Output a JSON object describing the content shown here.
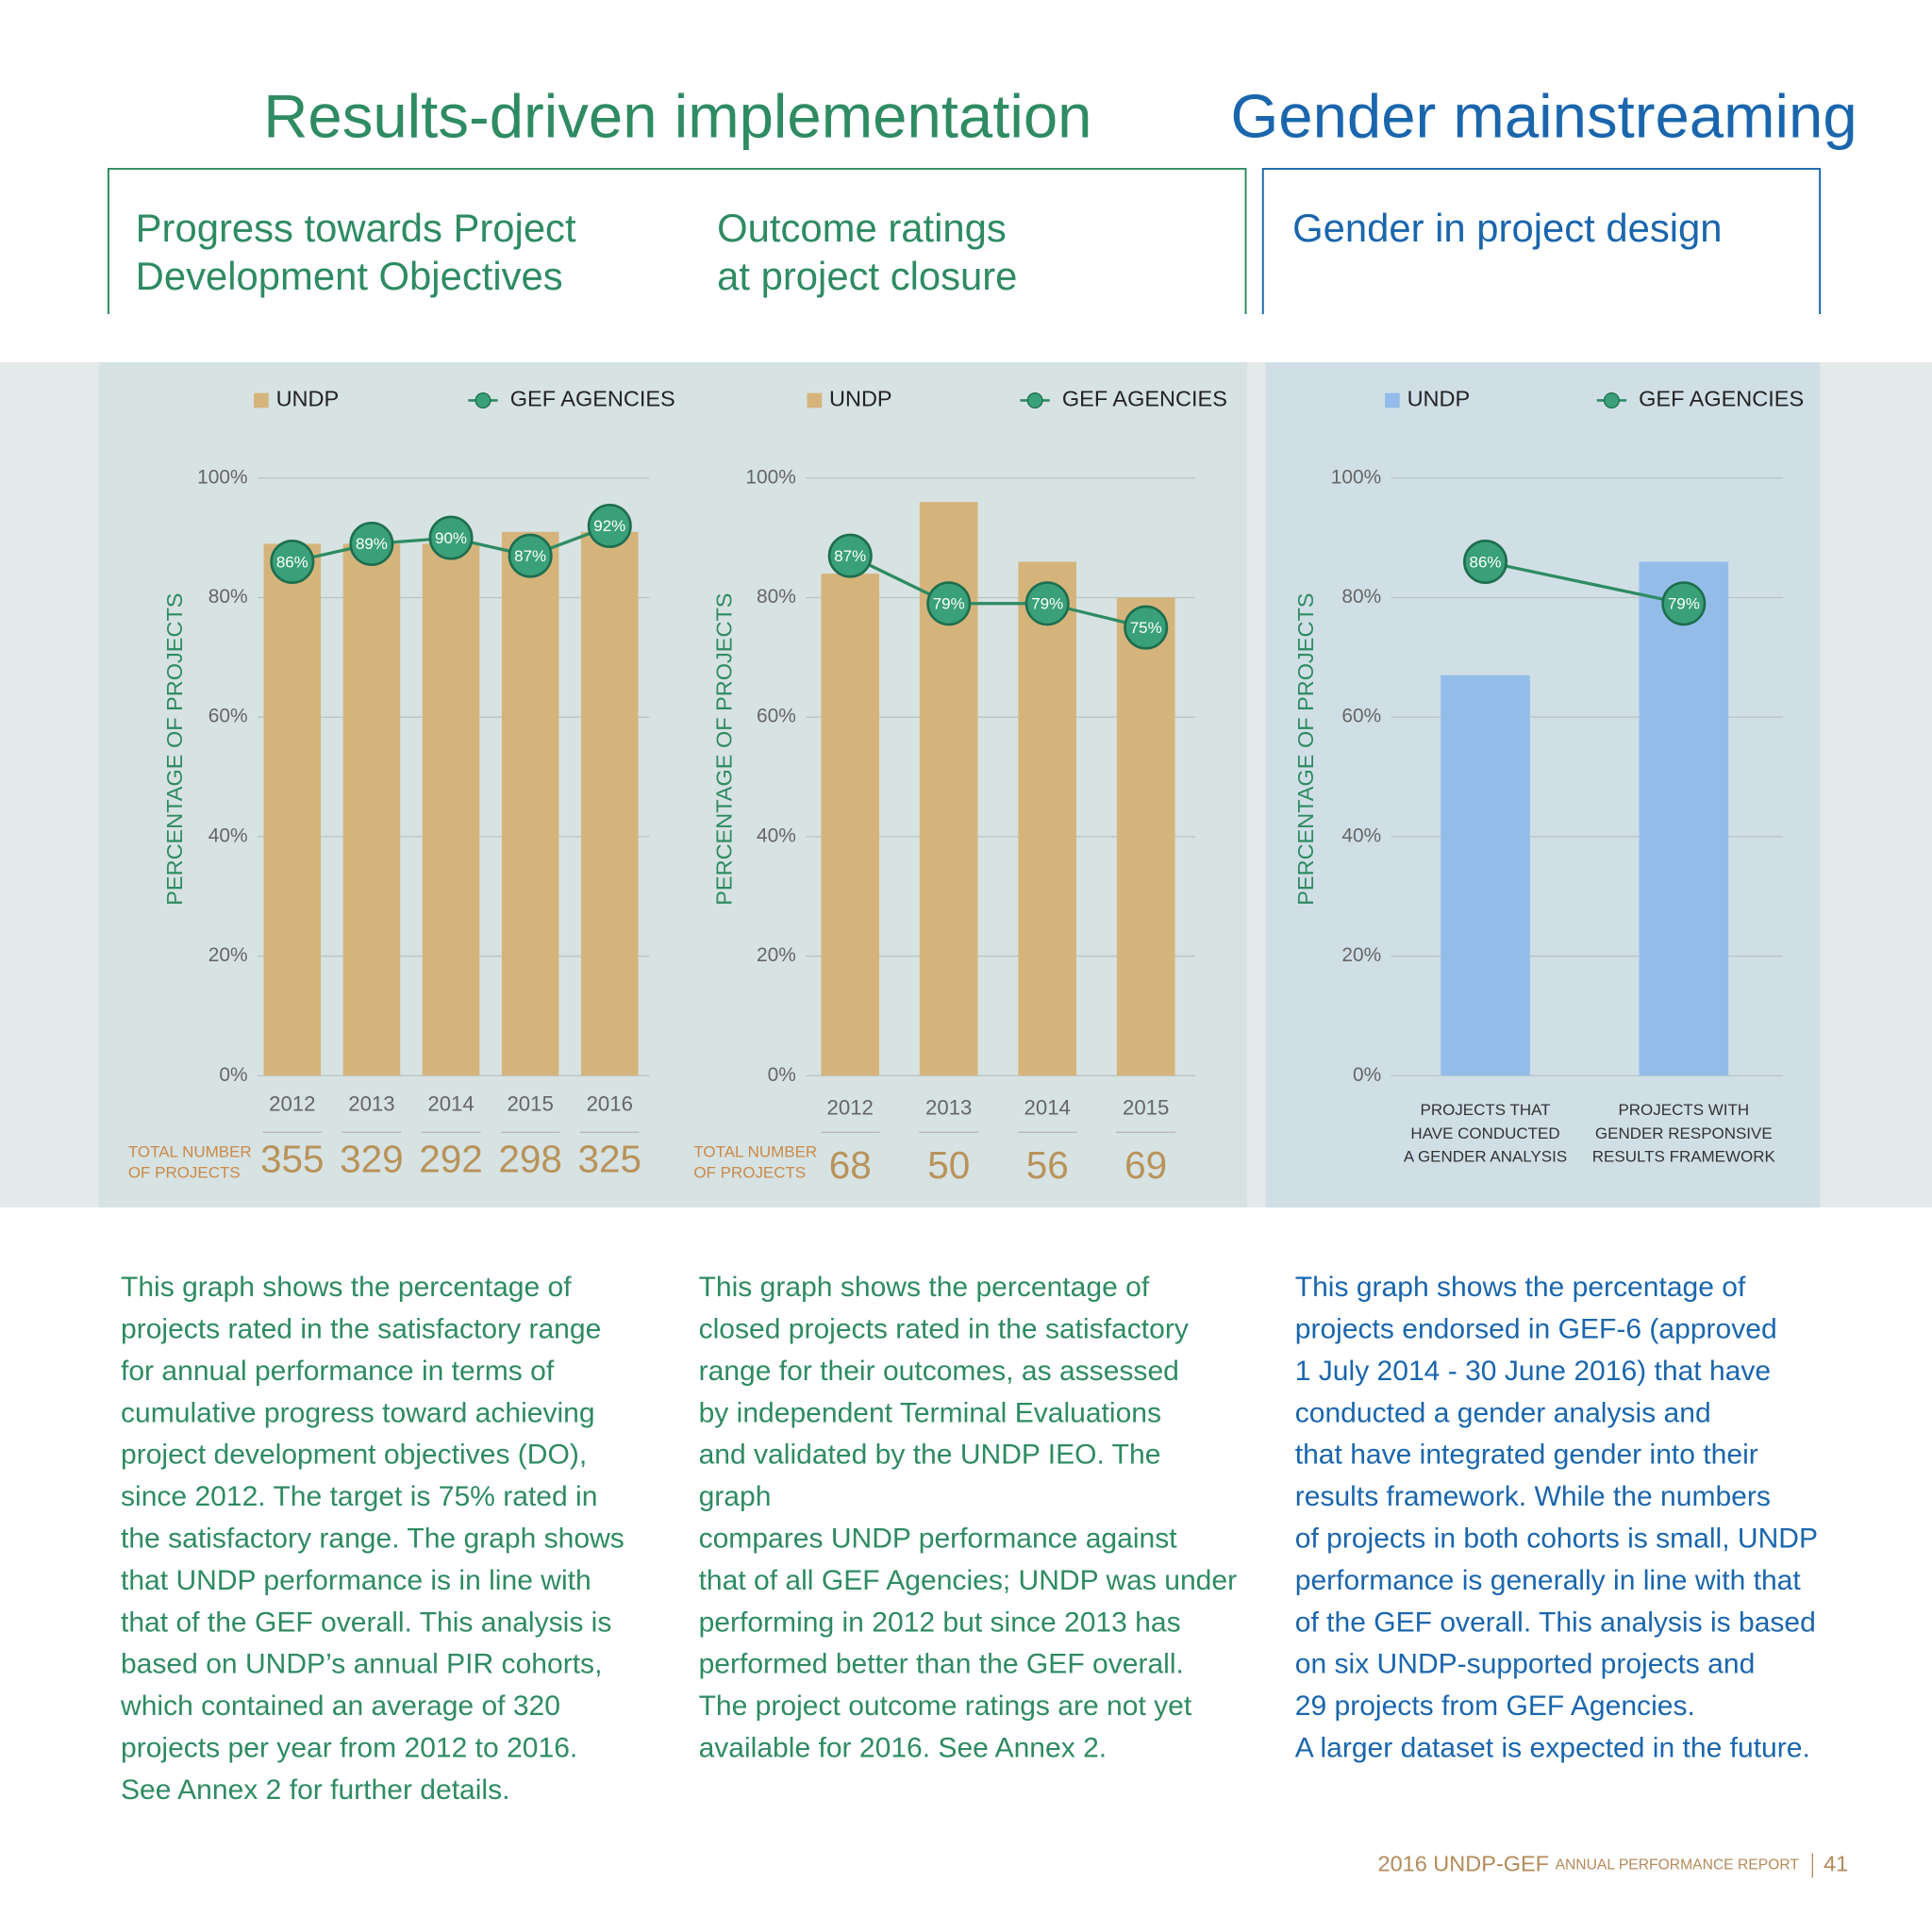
{
  "headers": {
    "results": "Results-driven implementation",
    "gender": "Gender mainstreaming"
  },
  "chart_data": [
    {
      "type": "bar",
      "title": "Progress towards Project\nDevelopment Objectives",
      "ylabel": "PERCENTAGE OF PROJECTS",
      "categories": [
        "2012",
        "2013",
        "2014",
        "2015",
        "2016"
      ],
      "series": [
        {
          "name": "UNDP",
          "color": "#d5b47c",
          "values": [
            89,
            89,
            89,
            91,
            91
          ]
        },
        {
          "name": "GEF AGENCIES",
          "type": "line",
          "color": "#2e8b62",
          "values": [
            86,
            89,
            90,
            87,
            92
          ],
          "value_labels": [
            "86%",
            "89%",
            "90%",
            "87%",
            "92%"
          ]
        }
      ],
      "ylim": [
        0,
        100
      ],
      "yticks": [
        {
          "value": 0,
          "label": "0%"
        },
        {
          "value": 20,
          "label": "20%"
        },
        {
          "value": 40,
          "label": "40%"
        },
        {
          "value": 60,
          "label": "60%"
        },
        {
          "value": 80,
          "label": "80%"
        },
        {
          "value": 100,
          "label": "100%"
        }
      ],
      "grid": true,
      "totals_label": "TOTAL NUMBER\nOF PROJECTS",
      "totals": [
        355,
        329,
        292,
        298,
        325
      ],
      "description": "This graph shows the percentage of\nprojects rated in the satisfactory range\nfor annual performance in terms of\ncumulative progress toward achieving\nproject development objectives (DO),\nsince 2012. The target is 75% rated in\nthe satisfactory range. The graph shows\nthat UNDP performance is in line with\nthat of the GEF overall. This analysis is\nbased on UNDP’s annual PIR cohorts,\nwhich contained an average of 320\nprojects per year from 2012 to 2016.\nSee Annex 2 for further details."
    },
    {
      "type": "bar",
      "title": "Outcome ratings\nat project closure",
      "ylabel": "PERCENTAGE OF PROJECTS",
      "categories": [
        "2012",
        "2013",
        "2014",
        "2015"
      ],
      "series": [
        {
          "name": "UNDP",
          "color": "#d5b47c",
          "values": [
            84,
            96,
            86,
            80
          ]
        },
        {
          "name": "GEF AGENCIES",
          "type": "line",
          "color": "#2e8b62",
          "values": [
            87,
            79,
            79,
            75
          ],
          "value_labels": [
            "87%",
            "79%",
            "79%",
            "75%"
          ]
        }
      ],
      "ylim": [
        0,
        100
      ],
      "yticks": [
        {
          "value": 0,
          "label": "0%"
        },
        {
          "value": 20,
          "label": "20%"
        },
        {
          "value": 40,
          "label": "40%"
        },
        {
          "value": 60,
          "label": "60%"
        },
        {
          "value": 80,
          "label": "80%"
        },
        {
          "value": 100,
          "label": "100%"
        }
      ],
      "grid": true,
      "totals_label": "TOTAL NUMBER\nOF PROJECTS",
      "totals": [
        68,
        50,
        56,
        69
      ],
      "description": "This graph shows the percentage of\nclosed projects rated in the satisfactory\nrange for their outcomes, as assessed\nby independent Terminal Evaluations\nand validated by the UNDP IEO. The graph\ncompares UNDP performance against\nthat of all GEF Agencies; UNDP was under\nperforming in 2012 but since 2013 has\nperformed better than the GEF overall.\nThe project outcome ratings are not yet\navailable for 2016. See Annex 2."
    },
    {
      "type": "bar",
      "title": "Gender in project design",
      "ylabel": "PERCENTAGE OF PROJECTS",
      "categories": [
        "PROJECTS THAT\nHAVE CONDUCTED\nA GENDER ANALYSIS",
        "PROJECTS WITH\nGENDER RESPONSIVE\nRESULTS FRAMEWORK"
      ],
      "series": [
        {
          "name": "UNDP",
          "color": "#93bde8",
          "values": [
            67,
            86
          ]
        },
        {
          "name": "GEF AGENCIES",
          "type": "line",
          "color": "#2e8b62",
          "values": [
            86,
            79
          ],
          "value_labels": [
            "86%",
            "79%"
          ]
        }
      ],
      "ylim": [
        0,
        100
      ],
      "yticks": [
        {
          "value": 0,
          "label": "0%"
        },
        {
          "value": 20,
          "label": "20%"
        },
        {
          "value": 40,
          "label": "40%"
        },
        {
          "value": 60,
          "label": "60%"
        },
        {
          "value": 80,
          "label": "80%"
        },
        {
          "value": 100,
          "label": "100%"
        }
      ],
      "grid": true,
      "description": "This graph shows the percentage of\nprojects endorsed in GEF-6 (approved\n1 July 2014 - 30 June 2016) that have\nconducted a gender analysis and\nthat have integrated gender into their\nresults framework. While the numbers\nof projects in both cohorts is small, UNDP\nperformance is generally in line with that\nof the GEF overall. This analysis is based\non six UNDP-supported projects and\n29 projects from GEF Agencies.\nA larger dataset is expected in the future."
    }
  ],
  "footer": {
    "report": "2016 UNDP-GEF",
    "report_small": "ANNUAL PERFORMANCE REPORT",
    "page": "41"
  }
}
